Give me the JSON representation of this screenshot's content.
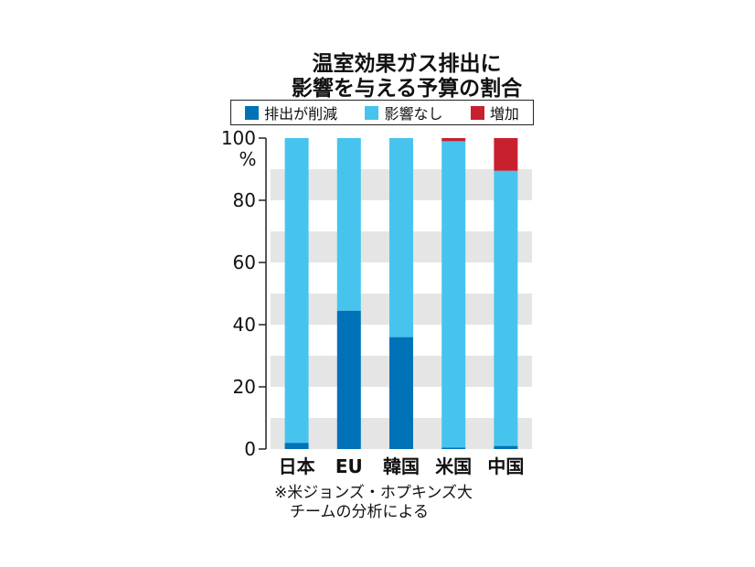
{
  "colors": {
    "reduce": "#0072b8",
    "no_effect": "#46c4ee",
    "increase": "#c8202f",
    "band": "#e5e5e5",
    "text": "#111111"
  },
  "title_lines": [
    "温室効果ガス排出に",
    "影響を与える予算の割合"
  ],
  "legend": [
    {
      "key": "reduce",
      "label": "排出が削減"
    },
    {
      "key": "no_effect",
      "label": "影響なし"
    },
    {
      "key": "increase",
      "label": "増加"
    }
  ],
  "note_lines": [
    "※米ジョンズ・ホプキンズ大",
    "チームの分析による"
  ],
  "chart_data": {
    "type": "bar",
    "stacked": true,
    "title": "温室効果ガス排出に影響を与える予算の割合",
    "categories": [
      "日本",
      "EU",
      "韓国",
      "米国",
      "中国"
    ],
    "series": [
      {
        "name": "排出が削減",
        "values": [
          2,
          44.5,
          36,
          0.5,
          1
        ]
      },
      {
        "name": "影響なし",
        "values": [
          98,
          55.5,
          64,
          98.5,
          88.5
        ]
      },
      {
        "name": "増加",
        "values": [
          0,
          0,
          0,
          1,
          10.5
        ]
      }
    ],
    "y_unit": "%",
    "ylim": [
      0,
      100
    ],
    "yticks": [
      "100",
      "80",
      "60",
      "40",
      "20",
      "0"
    ],
    "grid": "alternating bands",
    "legend_position": "top"
  }
}
